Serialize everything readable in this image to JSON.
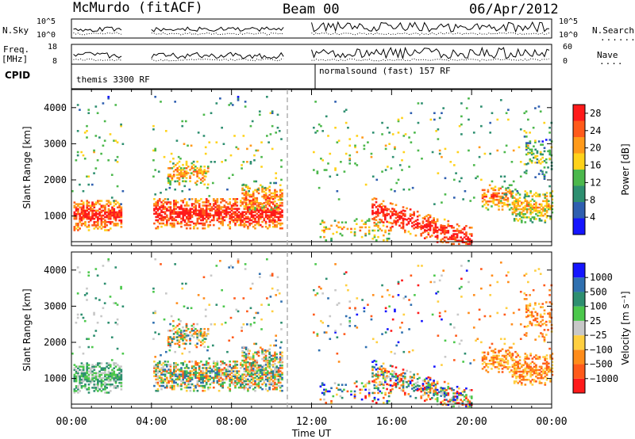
{
  "header": {
    "station": "McMurdo (fitACF)",
    "beam": "Beam 00",
    "date": "06/Apr/2012"
  },
  "strip": {
    "nsky_label": "N.Sky",
    "nsky_ticks": [
      "10^5",
      "10^0"
    ],
    "nsearch_label": "N.Search",
    "nsearch_ticks": [
      "10^5",
      "10^0"
    ],
    "freq_label_1": "Freq.",
    "freq_label_2": "[MHz]",
    "freq_ticks": [
      "18",
      "8"
    ],
    "nave_label": "Nave",
    "nave_ticks": [
      "60",
      "0"
    ],
    "cpid_label": "CPID",
    "cpid_segments": [
      "themis 3300 RF",
      "normalsound (fast) 157 RF"
    ]
  },
  "colors": {
    "power_scale": [
      "#1515ff",
      "#2f5fb0",
      "#2e8f70",
      "#4cb84c",
      "#ffd21a",
      "#ff9a1a",
      "#ff5a1a",
      "#ff1a1a"
    ],
    "velocity_scale": [
      "#ff1a1a",
      "#ff5a1a",
      "#ff8c1a",
      "#ffcf40",
      "#c8c8c8",
      "#4cc84c",
      "#2e8f70",
      "#2f70b0",
      "#1515ff"
    ]
  },
  "chart_data": [
    {
      "type": "heatmap",
      "name": "power",
      "xlabel": "Time UT",
      "ylabel": "Slant Range [km]",
      "xlim": [
        0,
        24
      ],
      "ylim": [
        180,
        4500
      ],
      "x_ticks": [
        "00:00",
        "04:00",
        "08:00",
        "12:00",
        "16:00",
        "20:00",
        "00:00"
      ],
      "y_ticks": [
        1000,
        2000,
        3000,
        4000
      ],
      "colorbar_label": "Power [dB]",
      "colorbar_ticks": [
        4,
        8,
        12,
        16,
        20,
        24,
        28
      ],
      "colorbar_range": [
        0,
        30
      ],
      "data_gaps_ut": [
        [
          2.6,
          4.0
        ],
        [
          10.6,
          12.0
        ]
      ]
    },
    {
      "type": "heatmap",
      "name": "velocity",
      "xlabel": "Time UT",
      "ylabel": "Slant Range [km]",
      "xlim": [
        0,
        24
      ],
      "ylim": [
        180,
        4500
      ],
      "x_ticks": [
        "00:00",
        "04:00",
        "08:00",
        "12:00",
        "16:00",
        "20:00",
        "00:00"
      ],
      "y_ticks": [
        1000,
        2000,
        3000,
        4000
      ],
      "colorbar_label": "Velocity [m s⁻¹]",
      "colorbar_ticks": [
        "1000",
        "500",
        "100",
        "25",
        "−25",
        "−100",
        "−500",
        "−1000"
      ],
      "data_gaps_ut": [
        [
          2.6,
          4.0
        ],
        [
          10.6,
          12.0
        ]
      ]
    }
  ]
}
